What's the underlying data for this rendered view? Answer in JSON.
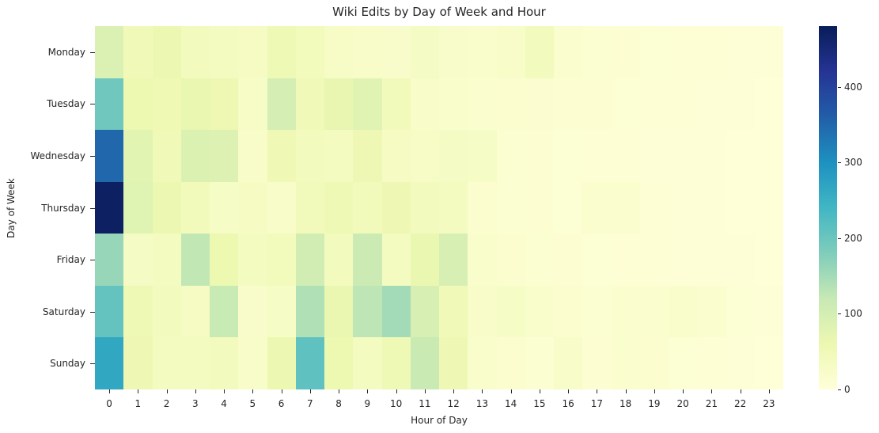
{
  "title": "Wiki Edits by Day of Week and Hour",
  "xlabel": "Hour of Day",
  "ylabel": "Day of Week",
  "chart_data": {
    "type": "heatmap",
    "title": "Wiki Edits by Day of Week and Hour",
    "xlabel": "Hour of Day",
    "ylabel": "Day of Week",
    "rows": [
      "Monday",
      "Tuesday",
      "Wednesday",
      "Thursday",
      "Friday",
      "Saturday",
      "Sunday"
    ],
    "cols": [
      "0",
      "1",
      "2",
      "3",
      "4",
      "5",
      "6",
      "7",
      "8",
      "9",
      "10",
      "11",
      "12",
      "13",
      "14",
      "15",
      "16",
      "17",
      "18",
      "19",
      "20",
      "21",
      "22",
      "23"
    ],
    "values": [
      [
        90,
        48,
        62,
        40,
        36,
        34,
        52,
        44,
        28,
        24,
        22,
        32,
        22,
        20,
        26,
        42,
        16,
        12,
        10,
        9,
        8,
        7,
        6,
        5
      ],
      [
        195,
        60,
        55,
        64,
        58,
        28,
        100,
        48,
        68,
        80,
        45,
        26,
        20,
        18,
        15,
        13,
        11,
        10,
        9,
        8,
        7,
        6,
        5,
        4
      ],
      [
        350,
        78,
        50,
        88,
        86,
        24,
        54,
        40,
        38,
        56,
        34,
        28,
        32,
        30,
        12,
        10,
        9,
        8,
        7,
        6,
        5,
        5,
        4,
        3
      ],
      [
        470,
        82,
        62,
        45,
        30,
        33,
        26,
        46,
        52,
        46,
        56,
        40,
        36,
        15,
        12,
        10,
        9,
        16,
        18,
        7,
        6,
        5,
        4,
        3
      ],
      [
        160,
        32,
        36,
        125,
        60,
        38,
        44,
        105,
        40,
        112,
        38,
        64,
        95,
        20,
        15,
        12,
        10,
        9,
        8,
        7,
        6,
        5,
        5,
        4
      ],
      [
        205,
        52,
        40,
        35,
        118,
        22,
        30,
        140,
        66,
        128,
        150,
        95,
        50,
        26,
        30,
        20,
        15,
        12,
        18,
        16,
        20,
        18,
        9,
        6
      ],
      [
        265,
        56,
        38,
        36,
        40,
        25,
        62,
        210,
        60,
        38,
        52,
        115,
        56,
        20,
        15,
        12,
        26,
        10,
        18,
        15,
        9,
        7,
        5,
        4
      ]
    ],
    "vmin": 0,
    "vmax": 480,
    "colormap": "YlGnBu",
    "colorbar_ticks": [
      0,
      100,
      200,
      300,
      400
    ],
    "legend_position": "right-colorbar",
    "grid": false
  },
  "colors": {
    "background": "#ffffff",
    "text": "#262626",
    "cmap_low": "#ffffd9",
    "cmap_high": "#081d58"
  }
}
